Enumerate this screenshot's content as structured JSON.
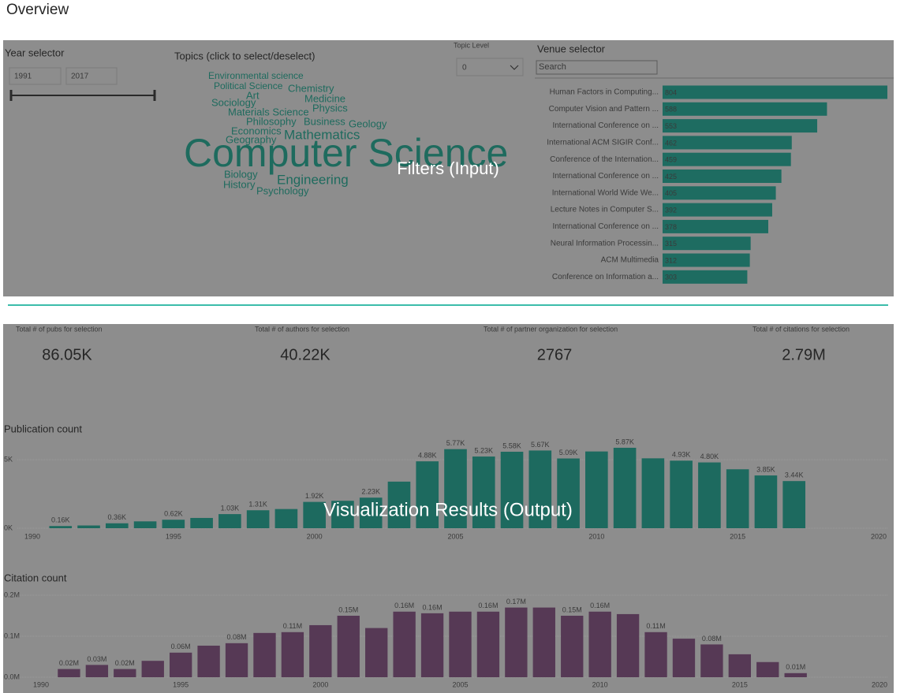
{
  "header": {
    "title": "Overview"
  },
  "filters": {
    "overlay_label": "Filters  (Input)",
    "year_selector": {
      "title": "Year selector",
      "from": 1991,
      "to": 2017
    },
    "topics": {
      "title": "Topics (click to select/deselect)",
      "words": [
        "Environmental science",
        "Political Science",
        "Chemistry",
        "Art",
        "Medicine",
        "Sociology",
        "Physics",
        "Materials Science",
        "Philosophy",
        "Business",
        "Geology",
        "Economics",
        "Mathematics",
        "Geography",
        "Computer Science",
        "Biology",
        "Engineering",
        "History",
        "Psychology"
      ]
    },
    "topic_level": {
      "label": "Topic Level",
      "value": 0
    },
    "venue_search": "Search"
  },
  "results": {
    "overlay_label": "Visualization Results (Output)",
    "kpis": [
      {
        "label": "Total # of pubs for selection",
        "value": "86.05K"
      },
      {
        "label": "Total # of authors for selection",
        "value": "40.22K"
      },
      {
        "label": "Total # of partner organization for selection",
        "value": 2767
      },
      {
        "label": "Total # of citations for selection",
        "value": "2.79M"
      }
    ]
  },
  "chart_data": [
    {
      "type": "hbar",
      "title": "Venue selector",
      "color": "#1e6c61",
      "categories": [
        "Human Factors in Computing...",
        "Computer Vision and Pattern ...",
        "International Conference on ...",
        "International ACM SIGIR Conf...",
        "Conference of the Internation...",
        "International Conference on ...",
        "International World Wide We...",
        "Lecture Notes in Computer S...",
        "International Conference on ...",
        "Neural Information Processin...",
        "ACM Multimedia",
        "Conference on Information a..."
      ],
      "values": [
        804,
        588,
        553,
        462,
        459,
        425,
        405,
        392,
        378,
        315,
        312,
        303
      ]
    },
    {
      "type": "bar",
      "title": "Publication count",
      "color": "#1d6a5f",
      "grid": true,
      "x": [
        1991,
        1992,
        1993,
        1994,
        1995,
        1996,
        1997,
        1998,
        1999,
        2000,
        2001,
        2002,
        2003,
        2004,
        2005,
        2006,
        2007,
        2008,
        2009,
        2010,
        2011,
        2012,
        2013,
        2014,
        2015,
        2016,
        2017
      ],
      "values": [
        160,
        200,
        360,
        500,
        620,
        750,
        1030,
        1310,
        1400,
        1920,
        2000,
        2230,
        3400,
        4880,
        5770,
        5230,
        5580,
        5670,
        5090,
        5600,
        5870,
        5100,
        4930,
        4800,
        4300,
        3850,
        3440
      ],
      "value_labels": [
        "0.16K",
        null,
        "0.36K",
        null,
        "0.62K",
        null,
        "1.03K",
        "1.31K",
        null,
        "1.92K",
        null,
        "2.23K",
        null,
        "4.88K",
        "5.77K",
        "5.23K",
        "5.58K",
        "5.67K",
        "5.09K",
        null,
        "5.87K",
        null,
        "4.93K",
        "4.80K",
        null,
        "3.85K",
        "3.44K"
      ],
      "xlim": [
        1990,
        2020
      ],
      "xticks": [
        1990,
        1995,
        2000,
        2005,
        2010,
        2015,
        2020
      ],
      "ylim": [
        0,
        6500
      ],
      "yticks": [
        {
          "value": 0,
          "label": "0K"
        },
        {
          "value": 5000,
          "label": "5K"
        }
      ]
    },
    {
      "type": "bar",
      "title": "Citation count",
      "color": "#563955",
      "grid": true,
      "x": [
        1991,
        1992,
        1993,
        1994,
        1995,
        1996,
        1997,
        1998,
        1999,
        2000,
        2001,
        2002,
        2003,
        2004,
        2005,
        2006,
        2007,
        2008,
        2009,
        2010,
        2011,
        2012,
        2013,
        2014,
        2015,
        2016,
        2017
      ],
      "values": [
        20000,
        30000,
        20000,
        40000,
        60000,
        77000,
        83000,
        108000,
        110000,
        127000,
        150000,
        120000,
        160000,
        156000,
        160000,
        160000,
        170000,
        170000,
        150000,
        160000,
        154000,
        110000,
        94000,
        80000,
        56000,
        37000,
        10000
      ],
      "value_labels": [
        "0.02M",
        "0.03M",
        "0.02M",
        null,
        "0.06M",
        null,
        "0.08M",
        null,
        "0.11M",
        null,
        "0.15M",
        null,
        "0.16M",
        "0.16M",
        null,
        "0.16M",
        "0.17M",
        null,
        "0.15M",
        "0.16M",
        null,
        "0.11M",
        null,
        "0.08M",
        null,
        null,
        "0.01M"
      ],
      "xlim": [
        1990,
        2020
      ],
      "xticks": [
        1990,
        1995,
        2000,
        2005,
        2010,
        2015,
        2020
      ],
      "ylim": [
        0,
        200000
      ],
      "yticks": [
        {
          "value": 0,
          "label": "0.0M"
        },
        {
          "value": 100000,
          "label": "0.1M"
        },
        {
          "value": 200000,
          "label": "0.2M"
        }
      ]
    }
  ]
}
